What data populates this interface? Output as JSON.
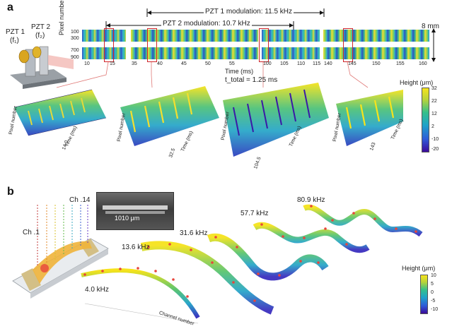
{
  "panel_a": {
    "label": "a",
    "pzt1": {
      "name": "PZT 1",
      "freq": "(f₁)"
    },
    "pzt2": {
      "name": "PZT 2",
      "freq": "(f₂)"
    },
    "pzt1_modulation": "PZT 1 modulation: 11.5 kHz",
    "pzt2_modulation": "PZT 2 modulation: 10.7 kHz",
    "scale": "8 mm",
    "y_axis_label": "Pixel number",
    "y_ticks": [
      "100",
      "300",
      "700",
      "900"
    ],
    "x_axis_label": "Time (ms)",
    "x_ticks": [
      "10",
      "15",
      "35",
      "40",
      "45",
      "50",
      "55",
      "100",
      "105",
      "110",
      "115",
      "140",
      "145",
      "150",
      "155",
      "160"
    ],
    "t_total": "t_total = 1.25 ms",
    "colorbar_title": "Height (μm)",
    "colorbar_ticks": [
      "32",
      "22",
      "12",
      "2",
      "-10",
      "-20"
    ],
    "surface_axes": {
      "pixel": "Pixel number",
      "time": "Time (ms)"
    },
    "surface_time_ticks": [
      "14.0",
      "32.5",
      "104.5",
      "143"
    ]
  },
  "panel_b": {
    "label": "b",
    "ch1": "Ch .1",
    "ch14": "Ch .14",
    "sem_scale": "1010 μm",
    "frequencies": [
      "4.0 kHz",
      "13.6 kHz",
      "31.6 kHz",
      "57.7 kHz",
      "80.9 kHz"
    ],
    "axis_label": "Channel number",
    "colorbar_title": "Height (μm)",
    "colorbar_ticks": [
      "10",
      "5",
      "0",
      "-5",
      "-10"
    ]
  },
  "colors": {
    "accent_red": "#d0252a",
    "yellow": "#f6e31c",
    "blue": "#2f5bd8",
    "purple": "#3b0a9a"
  }
}
